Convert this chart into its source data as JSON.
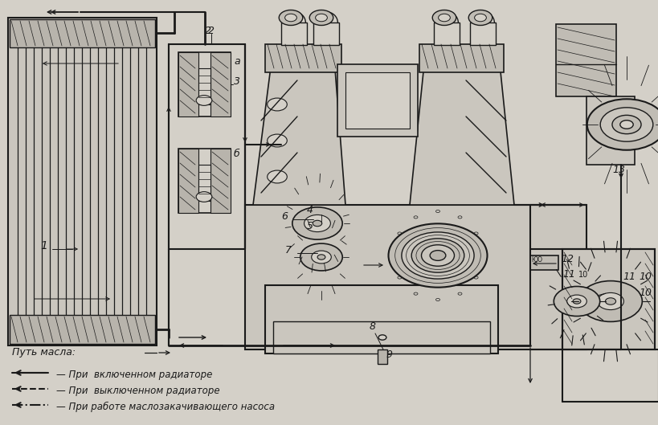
{
  "bg_color": "#d4d0c8",
  "line_color": "#1a1a1a",
  "fig_w": 8.2,
  "fig_h": 5.29,
  "dpi": 100,
  "legend_title": "Путь масла:",
  "legend_line1": "При  включенном радиаторе",
  "legend_line2": "При  выключенном радиаторе",
  "legend_line3": "При работе маслозакачивающего насоса"
}
